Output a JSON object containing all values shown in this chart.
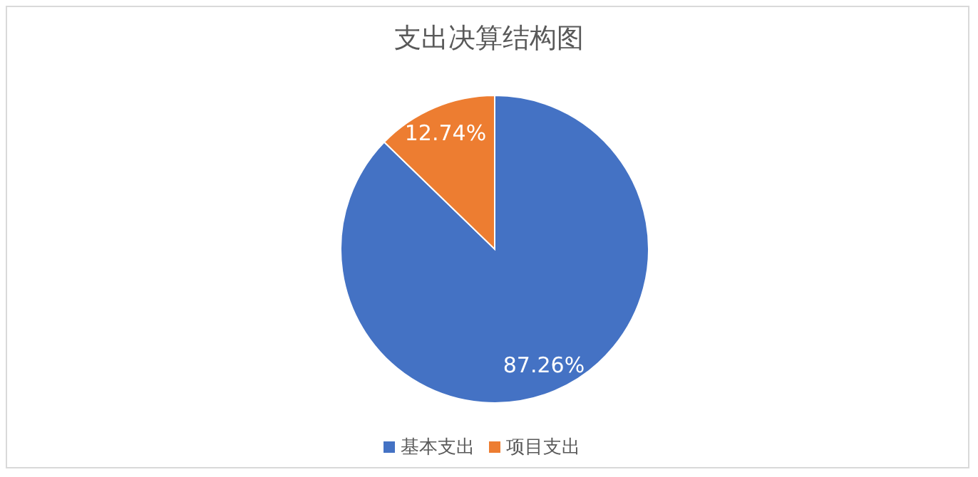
{
  "chart_data": {
    "type": "pie",
    "title": "支出决算结构图",
    "categories": [
      "基本支出",
      "项目支出"
    ],
    "values": [
      87.26,
      12.74
    ],
    "colors": [
      "#4472c4",
      "#ed7d31"
    ],
    "value_labels": [
      "87.26%",
      "12.74%"
    ],
    "legend": "bottom"
  }
}
